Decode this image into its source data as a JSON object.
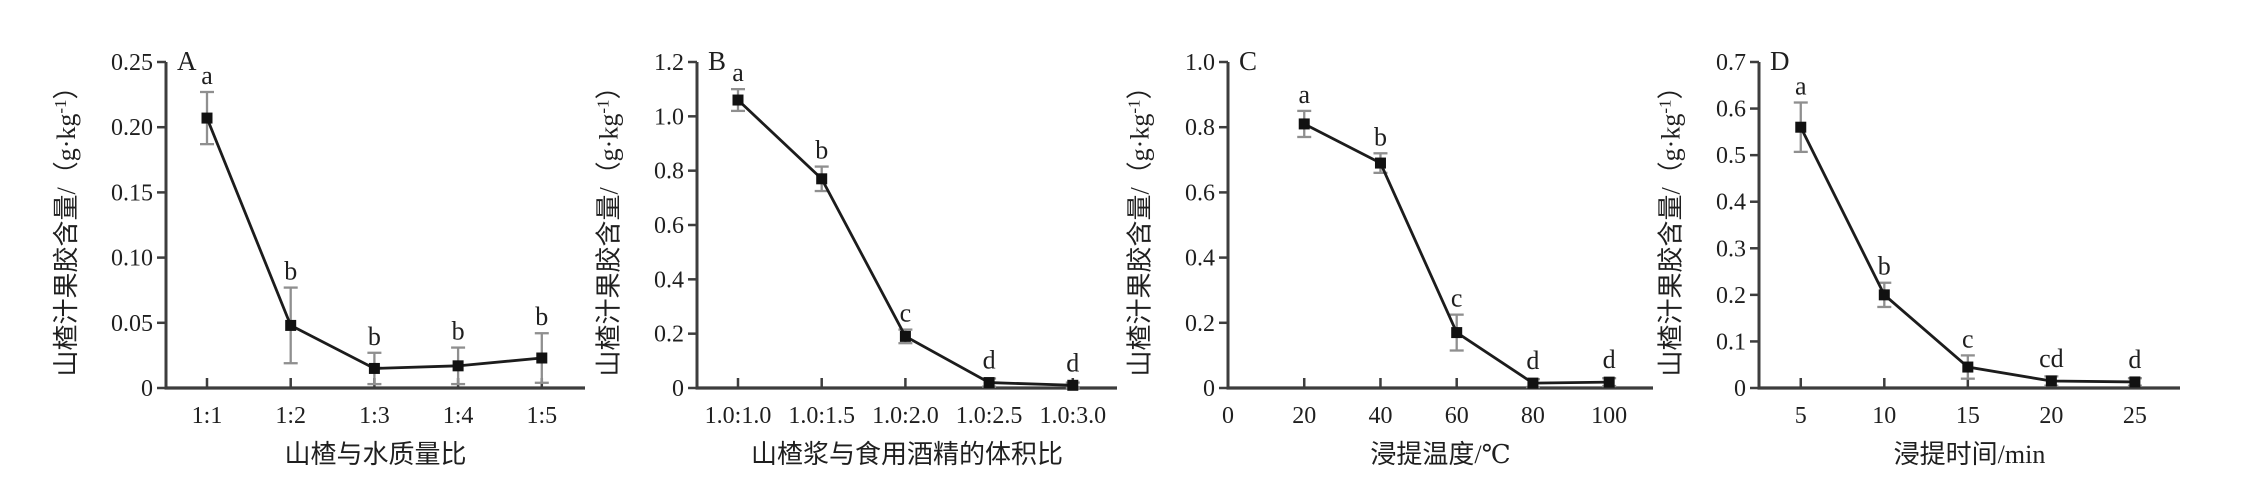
{
  "figure": {
    "description": "Four-panel line figure of hawthorn juice pectin content under different extraction conditions",
    "colors": {
      "background": "#ffffff",
      "axis": "#3d3d3d",
      "line": "#1c1c1c",
      "marker": "#111111",
      "error_bar": "#8f8f8f",
      "text": "#1f1f1f"
    }
  },
  "chart_data": [
    {
      "type": "line",
      "panel_label": "A",
      "x_mode": "category",
      "categories": [
        "1:1",
        "1:2",
        "1:3",
        "1:4",
        "1:5"
      ],
      "values": [
        0.207,
        0.048,
        0.015,
        0.017,
        0.023
      ],
      "errors": [
        0.02,
        0.029,
        0.012,
        0.014,
        0.019
      ],
      "point_labels": [
        "a",
        "b",
        "b",
        "b",
        "b"
      ],
      "xlabel": "山楂与水质量比",
      "ylabel": {
        "prefix": "山楂汁果胶含量/（g·kg",
        "sup": "-1",
        "suffix": "）"
      },
      "ylim": [
        0,
        0.25
      ],
      "yticks": [
        "0",
        "0.05",
        "0.10",
        "0.15",
        "0.20",
        "0.25"
      ],
      "grid": false,
      "legend": "none"
    },
    {
      "type": "line",
      "panel_label": "B",
      "x_mode": "category",
      "categories": [
        "1.0:1.0",
        "1.0:1.5",
        "1.0:2.0",
        "1.0:2.5",
        "1.0:3.0"
      ],
      "values": [
        1.06,
        0.77,
        0.19,
        0.02,
        0.01
      ],
      "errors": [
        0.04,
        0.045,
        0.025,
        0.015,
        0.01
      ],
      "point_labels": [
        "a",
        "b",
        "c",
        "d",
        "d"
      ],
      "xlabel": "山楂浆与食用酒精的体积比",
      "ylabel": {
        "prefix": "山楂汁果胶含量/（g·kg",
        "sup": "-1",
        "suffix": "）"
      },
      "ylim": [
        0,
        1.2
      ],
      "yticks": [
        "0",
        "0.2",
        "0.4",
        "0.6",
        "0.8",
        "1.0",
        "1.2"
      ],
      "grid": false,
      "legend": "none"
    },
    {
      "type": "line",
      "panel_label": "C",
      "x_mode": "numeric",
      "x": [
        20,
        40,
        60,
        80,
        100
      ],
      "xtick_values": [
        0,
        20,
        40,
        60,
        80,
        100
      ],
      "xtick_labels": [
        "0",
        "20",
        "40",
        "60",
        "80",
        "100"
      ],
      "xlim": [
        0,
        111.5
      ],
      "values": [
        0.81,
        0.69,
        0.17,
        0.015,
        0.018
      ],
      "errors": [
        0.04,
        0.03,
        0.055,
        0.012,
        0.012
      ],
      "point_labels": [
        "a",
        "b",
        "c",
        "d",
        "d"
      ],
      "xlabel": "浸提温度/℃",
      "ylabel": {
        "prefix": "山楂汁果胶含量/（g·kg",
        "sup": "-1",
        "suffix": "）"
      },
      "ylim": [
        0,
        1.0
      ],
      "yticks": [
        "0",
        "0.2",
        "0.4",
        "0.6",
        "0.8",
        "1.0"
      ],
      "grid": false,
      "legend": "none"
    },
    {
      "type": "line",
      "panel_label": "D",
      "x_mode": "numeric",
      "x": [
        5,
        10,
        15,
        20,
        25
      ],
      "xtick_values": [
        5,
        10,
        15,
        20,
        25
      ],
      "xtick_labels": [
        "5",
        "10",
        "15",
        "20",
        "25"
      ],
      "xlim": [
        2.5,
        27.7
      ],
      "values": [
        0.56,
        0.2,
        0.045,
        0.015,
        0.013
      ],
      "errors": [
        0.053,
        0.026,
        0.025,
        0.01,
        0.008
      ],
      "point_labels": [
        "a",
        "b",
        "c",
        "cd",
        "d"
      ],
      "xlabel": "浸提时间/min",
      "ylabel": {
        "prefix": "山楂汁果胶含量/（g·kg",
        "sup": "-1",
        "suffix": "）"
      },
      "ylim": [
        0,
        0.7
      ],
      "yticks": [
        "0",
        "0.1",
        "0.2",
        "0.3",
        "0.4",
        "0.5",
        "0.6",
        "0.7"
      ],
      "grid": false,
      "legend": "none"
    }
  ]
}
